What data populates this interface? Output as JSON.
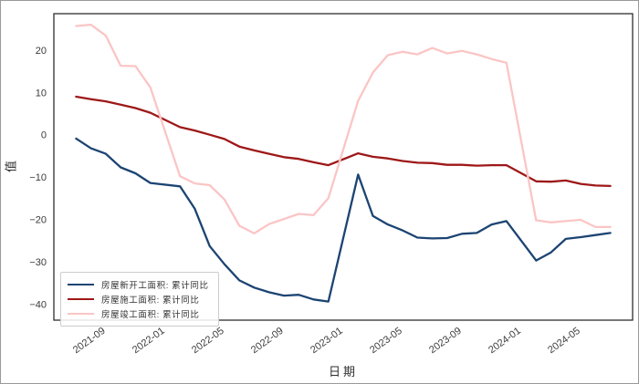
{
  "chart_data": {
    "type": "line",
    "title": "",
    "xlabel": "日期",
    "ylabel": "值",
    "grid": false,
    "legend_position": "lower-left",
    "axis_color": "#2e2e2e",
    "tick_color": "#3a3a3a",
    "ylim": [
      -43.8,
      28.6
    ],
    "x_dates": [
      "2021-07",
      "2021-08",
      "2021-09",
      "2021-10",
      "2021-11",
      "2021-12",
      "2022-02",
      "2022-03",
      "2022-04",
      "2022-05",
      "2022-06",
      "2022-07",
      "2022-08",
      "2022-09",
      "2022-10",
      "2022-11",
      "2022-12",
      "2023-02",
      "2023-03",
      "2023-04",
      "2023-05",
      "2023-06",
      "2023-07",
      "2023-08",
      "2023-09",
      "2023-10",
      "2023-11",
      "2023-12",
      "2024-02",
      "2024-03",
      "2024-04",
      "2024-05",
      "2024-06",
      "2024-07"
    ],
    "series": [
      {
        "name": "房屋新开工面积: 累计同比",
        "color": "#1c4472",
        "values": [
          -0.9,
          -3.2,
          -4.5,
          -7.7,
          -9.1,
          -11.4,
          -12.2,
          -17.5,
          -26.3,
          -30.6,
          -34.4,
          -36.1,
          -37.2,
          -38.0,
          -37.8,
          -38.9,
          -39.4,
          -9.4,
          -19.2,
          -21.2,
          -22.6,
          -24.3,
          -24.5,
          -24.4,
          -23.4,
          -23.2,
          -21.2,
          -20.4,
          -29.7,
          -27.8,
          -24.6,
          -24.2,
          -23.7,
          -23.2
        ]
      },
      {
        "name": "房屋施工面积: 累计同比",
        "color": "#9e1818",
        "values": [
          9.0,
          8.4,
          7.9,
          7.1,
          6.3,
          5.2,
          1.8,
          1.0,
          0.0,
          -1.0,
          -2.8,
          -3.7,
          -4.5,
          -5.3,
          -5.7,
          -6.5,
          -7.2,
          -4.4,
          -5.2,
          -5.6,
          -6.2,
          -6.6,
          -6.7,
          -7.1,
          -7.1,
          -7.3,
          -7.2,
          -7.2,
          -11.0,
          -11.1,
          -10.8,
          -11.6,
          -12.0,
          -12.1
        ]
      },
      {
        "name": "房屋竣工面积: 累计同比",
        "color": "#fbc5c5",
        "values": [
          25.7,
          26.0,
          23.4,
          16.3,
          16.2,
          11.2,
          -9.8,
          -11.5,
          -11.9,
          -15.3,
          -21.5,
          -23.3,
          -21.1,
          -19.9,
          -18.7,
          -19.0,
          -15.0,
          8.0,
          14.7,
          18.8,
          19.6,
          19.0,
          20.5,
          19.2,
          19.8,
          19.0,
          17.9,
          17.0,
          -20.2,
          -20.7,
          -20.4,
          -20.1,
          -21.8,
          -21.8
        ]
      }
    ],
    "xtick_labels": [
      "2021-09",
      "2022-01",
      "2022-05",
      "2022-09",
      "2023-01",
      "2023-05",
      "2023-09",
      "2024-01",
      "2024-05"
    ],
    "ytick_values": [
      20,
      10,
      0,
      -10,
      -20,
      -30,
      -40
    ],
    "ytick_labels": [
      "20",
      "10",
      "0",
      "−10",
      "−20",
      "−30",
      "−40"
    ]
  }
}
